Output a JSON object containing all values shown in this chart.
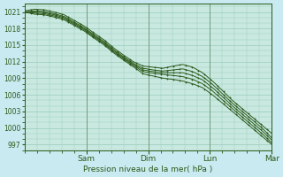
{
  "xlabel": "Pression niveau de la mer( hPa )",
  "background_color": "#c8eaf0",
  "plot_background_color": "#c8e8e0",
  "grid_color": "#99ccbb",
  "line_color": "#2d5a1b",
  "ylim": [
    996,
    1022.5
  ],
  "yticks": [
    997,
    1000,
    1003,
    1006,
    1009,
    1012,
    1015,
    1018,
    1021
  ],
  "day_labels": [
    "Sam",
    "Dim",
    "Lun",
    "Mar"
  ],
  "day_positions": [
    0.25,
    0.5,
    0.75,
    1.0
  ],
  "num_points": 200,
  "series": [
    [
      1021.2,
      1021.5,
      1021.4,
      1021.0,
      1020.5,
      1019.5,
      1018.5,
      1017.2,
      1016.0,
      1014.5,
      1013.2,
      1012.0,
      1011.2,
      1011.0,
      1010.8,
      1011.2,
      1011.5,
      1011.0,
      1010.0,
      1008.5,
      1006.8,
      1005.0,
      1003.5,
      1002.0,
      1000.5,
      999.0
    ],
    [
      1021.0,
      1021.2,
      1021.1,
      1020.7,
      1020.2,
      1019.2,
      1018.2,
      1016.9,
      1015.7,
      1014.2,
      1012.9,
      1011.7,
      1010.8,
      1010.5,
      1010.3,
      1010.5,
      1010.7,
      1010.2,
      1009.3,
      1007.9,
      1006.2,
      1004.5,
      1003.0,
      1001.5,
      1000.0,
      998.2
    ],
    [
      1021.0,
      1021.0,
      1020.9,
      1020.5,
      1020.0,
      1019.0,
      1018.0,
      1016.7,
      1015.5,
      1014.0,
      1012.7,
      1011.5,
      1010.5,
      1010.2,
      1010.0,
      1010.0,
      1010.0,
      1009.5,
      1008.7,
      1007.3,
      1005.7,
      1004.0,
      1002.5,
      1001.0,
      999.5,
      997.8
    ],
    [
      1021.0,
      1020.8,
      1020.7,
      1020.3,
      1019.8,
      1018.8,
      1017.8,
      1016.5,
      1015.3,
      1013.8,
      1012.5,
      1011.3,
      1010.2,
      1009.9,
      1009.7,
      1009.5,
      1009.3,
      1008.8,
      1008.0,
      1006.7,
      1005.1,
      1003.5,
      1002.0,
      1000.5,
      999.0,
      997.3
    ],
    [
      1021.0,
      1020.6,
      1020.5,
      1020.1,
      1019.6,
      1018.6,
      1017.6,
      1016.3,
      1015.1,
      1013.6,
      1012.3,
      1011.1,
      1009.8,
      1009.4,
      1009.0,
      1008.8,
      1008.5,
      1008.0,
      1007.3,
      1006.0,
      1004.5,
      1003.0,
      1001.5,
      1000.0,
      998.5,
      997.0
    ]
  ]
}
